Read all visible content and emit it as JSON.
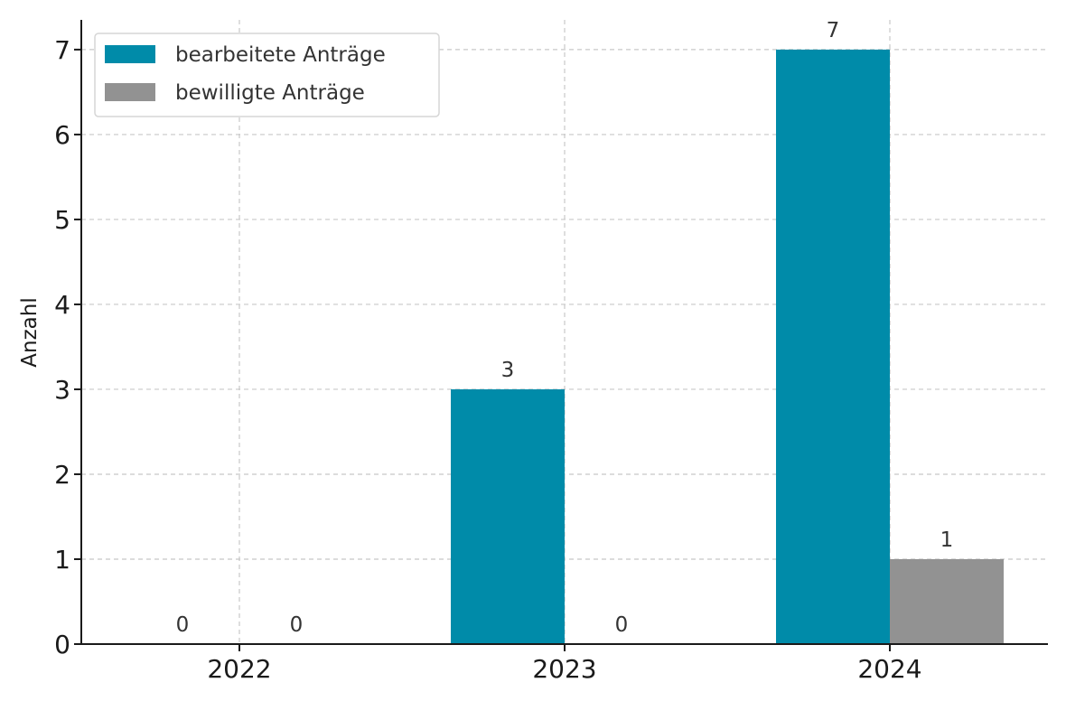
{
  "chart_data": {
    "type": "bar",
    "categories": [
      "2022",
      "2023",
      "2024"
    ],
    "series": [
      {
        "name": "bearbeitete Anträge",
        "values": [
          0,
          3,
          7
        ],
        "color": "#008ba9"
      },
      {
        "name": "bewilligte Anträge",
        "values": [
          0,
          0,
          1
        ],
        "color": "#929292"
      }
    ],
    "ylabel": "Anzahl",
    "xlabel": "",
    "ylim": [
      0,
      7.35
    ],
    "yticks": [
      0,
      1,
      2,
      3,
      4,
      5,
      6,
      7
    ],
    "grid": true,
    "legend_position": "top-left",
    "data_labels": true
  }
}
